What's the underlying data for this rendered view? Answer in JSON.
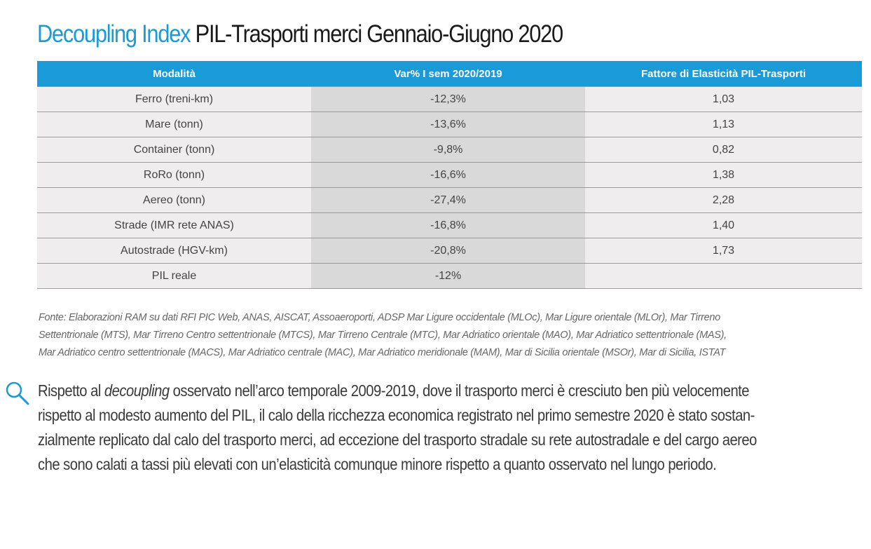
{
  "title": {
    "accent": "Decoupling Index",
    "rest": "PIL-Trasporti merci Gennaio-Giugno 2020"
  },
  "table": {
    "headers": [
      "Modalità",
      "Var% I sem 2020/2019",
      "Fattore di Elasticità PIL-Trasporti"
    ],
    "rows": [
      [
        "Ferro (treni-km)",
        "-12,3%",
        "1,03"
      ],
      [
        "Mare (tonn)",
        "-13,6%",
        "1,13"
      ],
      [
        "Container (tonn)",
        "-9,8%",
        "0,82"
      ],
      [
        "RoRo (tonn)",
        "-16,6%",
        "1,38"
      ],
      [
        "Aereo (tonn)",
        "-27,4%",
        "2,28"
      ],
      [
        "Strade (IMR rete ANAS)",
        "-16,8%",
        "1,40"
      ],
      [
        "Autostrade (HGV-km)",
        "-20,8%",
        "1,73"
      ],
      [
        "PIL reale",
        "-12%",
        ""
      ]
    ]
  },
  "source": {
    "lines": [
      "Fonte: Elaborazioni RAM su dati RFI PIC Web, ANAS, AISCAT, Assoaeroporti, ADSP Mar Ligure occidentale (MLOc), Mar Ligure orientale (MLOr), Mar Tirreno",
      "Settentrionale (MTS), Mar Tirreno Centro settentrionale (MTCS), Mar Tirreno Centrale (MTC), Mar Adriatico orientale (MAO), Mar Adriatico settentrionale (MAS),",
      "Mar Adriatico centro settentrionale (MACS), Mar Adriatico centrale (MAC), Mar Adriatico meridionale (MAM), Mar di Sicilia orientale (MSOr), Mar di Sicilia, ISTAT"
    ]
  },
  "body": {
    "line1_pre": "Rispetto al ",
    "line1_em": "decoupling",
    "line1_post": " osservato nell’arco temporale 2009-2019, dove il trasporto merci è cresciuto ben più velocemente",
    "line2": "rispetto al modesto aumento del PIL, il calo della ricchezza economica registrato nel primo semestre 2020 è stato sostan-",
    "line3": "zialmente replicato dal calo del trasporto merci, ad eccezione del trasporto stradale su rete autostradale e del cargo aereo",
    "line4": "che sono calati a tassi più elevati con un’elasticità comunque minore rispetto a quanto osservato nel lungo periodo."
  },
  "colors": {
    "accent": "#1a9ad6",
    "row_bg": "#efeded",
    "mid_col_bg": "#d9d9d9"
  },
  "icons": {
    "search": "search-icon"
  }
}
